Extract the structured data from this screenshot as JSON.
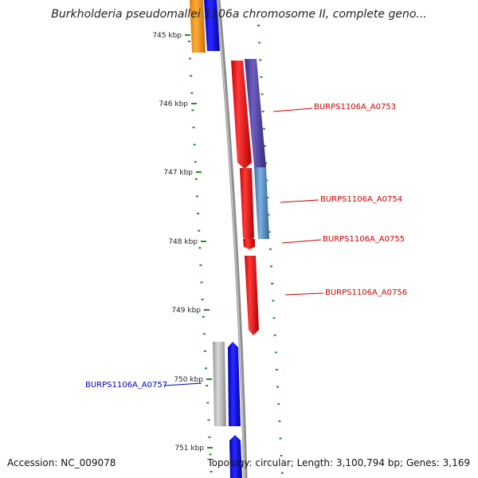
{
  "title": "Burkholderia pseudomallei 1106a chromosome II, complete geno...",
  "accession_text": "Accession: NC_009078",
  "summary_text": "Topology: circular; Length: 3,100,794 bp; Genes: 3,169",
  "colors": {
    "backbone": "#9a9a9a",
    "tick_mark": "#2a8a2a",
    "label_red": "#cc0000",
    "label_blue": "#0000bb",
    "gene_red": "#ee1111",
    "gene_blue": "#1111ee",
    "gene_orange": "#f29019",
    "gene_grey": "#b4b4b4",
    "gene_purple": "#5a4aa0",
    "gene_steel": "#5a8fc4"
  },
  "ticks": [
    {
      "label": "745 kbp"
    },
    {
      "label": "746 kbp"
    },
    {
      "label": "747 kbp"
    },
    {
      "label": "748 kbp"
    },
    {
      "label": "749 kbp"
    },
    {
      "label": "750 kbp"
    },
    {
      "label": "751 kbp"
    }
  ],
  "gene_labels": [
    {
      "text": "BURPS1106A_A0753",
      "color": "#cc0000"
    },
    {
      "text": "BURPS1106A_A0754",
      "color": "#cc0000"
    },
    {
      "text": "BURPS1106A_A0755",
      "color": "#cc0000"
    },
    {
      "text": "BURPS1106A_A0756",
      "color": "#cc0000"
    },
    {
      "text": "BURPS1106A_A0757",
      "color": "#0000bb"
    }
  ]
}
